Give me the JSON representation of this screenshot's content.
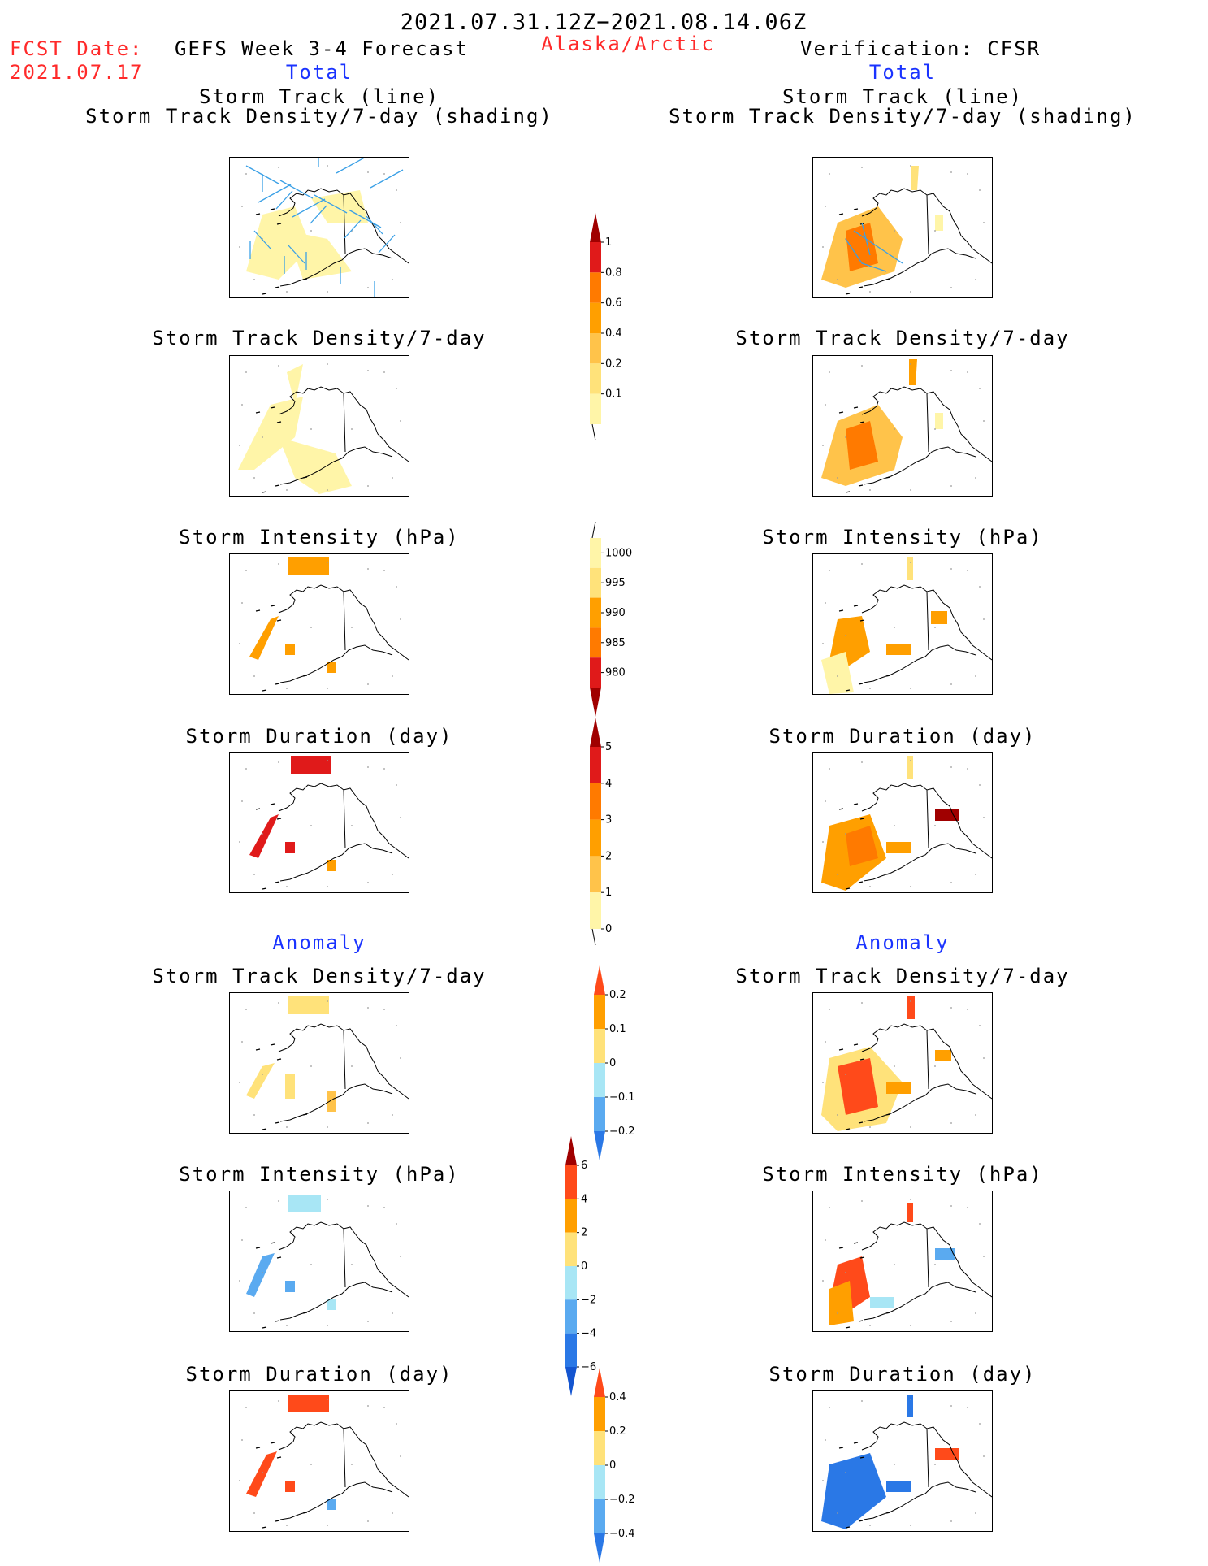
{
  "header": {
    "period": "2021.07.31.12Z−2021.08.14.06Z",
    "fcst_label": "FCST Date:",
    "fcst_date": "2021.07.17",
    "model_title": "GEFS Week 3-4 Forecast",
    "region": "Alaska/Arctic",
    "verification": "Verification: CFSR"
  },
  "sections": {
    "total": "Total",
    "anomaly": "Anomaly"
  },
  "panel_titles": {
    "track_line": "Storm Track (line)",
    "track_shading": "Storm Track Density/7-day (shading)",
    "density": "Storm Track Density/7-day",
    "intensity": "Storm Intensity (hPa)",
    "duration": "Storm Duration (day)"
  },
  "colors": {
    "pale_yellow": "#fff5a8",
    "yellow": "#ffe27a",
    "light_orange": "#ffc34a",
    "orange": "#ff9f00",
    "dark_orange": "#ff7a00",
    "red_orange": "#ff4a1a",
    "red": "#e01a1a",
    "dark_red": "#a00000",
    "track_line": "#3aa0e6",
    "light_blue": "#a8e6f5",
    "mid_blue": "#5aaaf0",
    "blue": "#2a78e6",
    "dark_blue": "#1455d0"
  },
  "chart_data": [
    {
      "type": "heatmap",
      "name": "total_density",
      "colorbar": {
        "ticks": [
          "0.1",
          "0.2",
          "0.4",
          "0.6",
          "0.8",
          "1"
        ],
        "colors": [
          "#fff5a8",
          "#ffe27a",
          "#ffc34a",
          "#ff9f00",
          "#ff7a00",
          "#e01a1a",
          "#a00000"
        ]
      }
    },
    {
      "type": "heatmap",
      "name": "total_intensity",
      "colorbar": {
        "ticks": [
          "1000",
          "995",
          "990",
          "985",
          "980"
        ],
        "colors": [
          "#fff5a8",
          "#ffe27a",
          "#ff9f00",
          "#ff7a00",
          "#e01a1a",
          "#a00000"
        ]
      }
    },
    {
      "type": "heatmap",
      "name": "total_duration",
      "colorbar": {
        "ticks": [
          "5",
          "4",
          "3",
          "2",
          "1",
          "0"
        ],
        "colors": [
          "#a00000",
          "#e01a1a",
          "#ff7a00",
          "#ff9f00",
          "#ffc34a",
          "#fff5a8"
        ]
      }
    },
    {
      "type": "heatmap",
      "name": "anomaly_density",
      "colorbar": {
        "ticks": [
          "0.2",
          "0.1",
          "0",
          "−0.1",
          "−0.2"
        ],
        "colors": [
          "#ff4a1a",
          "#ff9f00",
          "#ffe27a",
          "#a8e6f5",
          "#5aaaf0",
          "#2a78e6"
        ]
      }
    },
    {
      "type": "heatmap",
      "name": "anomaly_intensity",
      "colorbar": {
        "ticks": [
          "6",
          "4",
          "2",
          "0",
          "−2",
          "−4",
          "−6"
        ],
        "colors": [
          "#a00000",
          "#ff4a1a",
          "#ff9f00",
          "#ffe27a",
          "#a8e6f5",
          "#5aaaf0",
          "#2a78e6",
          "#1455d0"
        ]
      }
    },
    {
      "type": "heatmap",
      "name": "anomaly_duration",
      "colorbar": {
        "ticks": [
          "0.4",
          "0.2",
          "0",
          "−0.2",
          "−0.4"
        ],
        "colors": [
          "#ff4a1a",
          "#ff9f00",
          "#ffe27a",
          "#a8e6f5",
          "#5aaaf0",
          "#2a78e6"
        ]
      }
    }
  ]
}
